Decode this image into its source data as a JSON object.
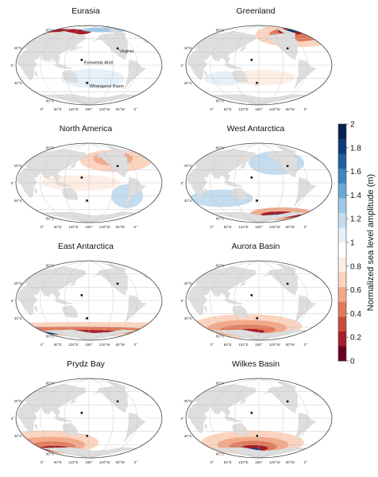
{
  "panels": [
    {
      "title": "Eurasia",
      "source": "eurasia"
    },
    {
      "title": "Greenland",
      "source": "greenland"
    },
    {
      "title": "North America",
      "source": "namerica"
    },
    {
      "title": "West Antarctica",
      "source": "wantarctica"
    },
    {
      "title": "East Antarctica",
      "source": "eantarctica"
    },
    {
      "title": "Aurora Basin",
      "source": "aurora"
    },
    {
      "title": "Prydz Bay",
      "source": "prydz"
    },
    {
      "title": "Wilkes Basin",
      "source": "wilkes"
    }
  ],
  "map_labels": {
    "lat_ticks": [
      "80°N",
      "40°N",
      "0°",
      "40°S",
      "80°S"
    ],
    "lon_ticks": [
      "0°",
      "60°E",
      "120°E",
      "180°",
      "120°W",
      "60°W",
      "0°"
    ],
    "sites": [
      {
        "name": "Enewetak Atoll"
      },
      {
        "name": "Virginia"
      },
      {
        "name": "Whanganui Basin"
      }
    ]
  },
  "colorbar": {
    "label": "Normalized sea level amplitude (m)",
    "ticks": [
      "0",
      "0.2",
      "0.4",
      "0.6",
      "0.8",
      "1",
      "1.2",
      "1.4",
      "1.6",
      "1.8",
      "2"
    ],
    "min": 0,
    "max": 2,
    "colors": [
      "#67001f",
      "#a51c2a",
      "#c94a3a",
      "#e07a5a",
      "#f2a98a",
      "#fbd4bf",
      "#fdeee5",
      "#ffffff",
      "#e6f0f8",
      "#c4dcef",
      "#9ec8e6",
      "#6aa9d6",
      "#3d86c0",
      "#1f5fa0",
      "#0b3c78",
      "#062150"
    ]
  },
  "colors": {
    "ocean": "#ffffff",
    "land": "#dedede",
    "grid": "#bdbdbd",
    "outline": "#444444"
  }
}
